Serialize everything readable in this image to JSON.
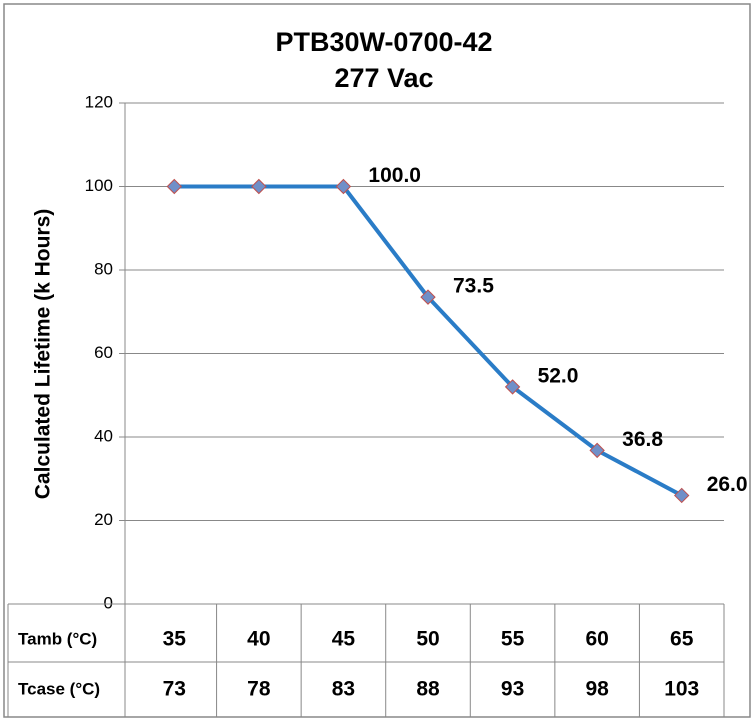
{
  "chart_data": {
    "type": "line",
    "title": "PTB30W-0700-42",
    "subtitle": "277 Vac",
    "y_label": "Calculated Lifetime (k Hours)",
    "category_label": "Tamb (°C)",
    "categories": [
      35,
      40,
      45,
      50,
      55,
      60,
      65
    ],
    "values": [
      100,
      100,
      100,
      73.5,
      52.0,
      36.8,
      26.0
    ],
    "value_labels": [
      null,
      null,
      "100.0",
      "73.5",
      "52.0",
      "36.8",
      "26.0"
    ],
    "table_rows": [
      {
        "name": "Tcase (°C)",
        "values": [
          73,
          78,
          83,
          88,
          93,
          98,
          103
        ]
      }
    ],
    "color": "#2a7cc7",
    "marker_color": "#6f8fc8",
    "marker_edge": "#c0504d",
    "ylim": [
      0,
      120
    ],
    "yticks": [
      0,
      20,
      40,
      60,
      80,
      100,
      120
    ],
    "grid": true
  }
}
